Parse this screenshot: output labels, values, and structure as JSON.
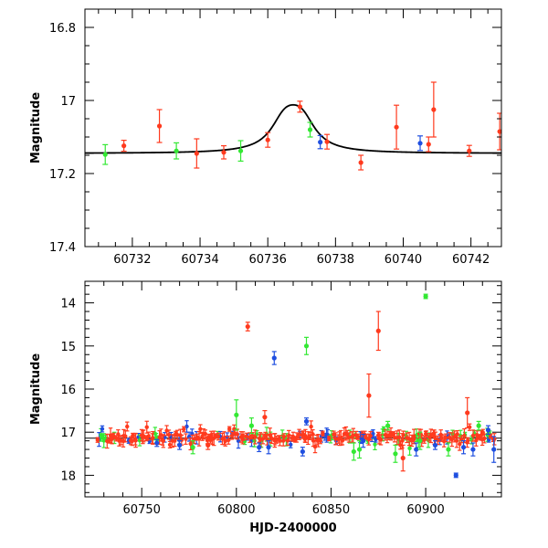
{
  "chart_data": [
    {
      "type": "scatter",
      "panel": "top",
      "xlabel": "",
      "ylabel": "Magnitude",
      "xlim": [
        60730.6,
        60742.9
      ],
      "ylim": [
        17.4,
        16.75
      ],
      "xticks": [
        60732,
        60734,
        60736,
        60738,
        60740,
        60742
      ],
      "xtick_labels": [
        "60732",
        "60734",
        "60736",
        "60738",
        "60740",
        "60742"
      ],
      "yticks": [
        16.8,
        17.0,
        17.2,
        17.4
      ],
      "ytick_labels": [
        "16.8",
        "17",
        "17.2",
        "17.4"
      ],
      "colors": {
        "red": "#ff3a1e",
        "green": "#33e833",
        "blue": "#1f4fe0",
        "curve": "#000000"
      },
      "model_curve": {
        "baseline": 17.145,
        "peak": 17.012,
        "t0": 60736.75,
        "width": 0.55
      },
      "points": [
        {
          "x": 60731.2,
          "y": 17.148,
          "err": 0.027,
          "color": "green"
        },
        {
          "x": 60731.75,
          "y": 17.124,
          "err": 0.015,
          "color": "red"
        },
        {
          "x": 60732.8,
          "y": 17.07,
          "err": 0.045,
          "color": "red"
        },
        {
          "x": 60733.3,
          "y": 17.138,
          "err": 0.022,
          "color": "green"
        },
        {
          "x": 60733.9,
          "y": 17.145,
          "err": 0.04,
          "color": "red"
        },
        {
          "x": 60734.7,
          "y": 17.142,
          "err": 0.018,
          "color": "red"
        },
        {
          "x": 60735.2,
          "y": 17.138,
          "err": 0.028,
          "color": "green"
        },
        {
          "x": 60736.0,
          "y": 17.108,
          "err": 0.02,
          "color": "red"
        },
        {
          "x": 60736.95,
          "y": 17.017,
          "err": 0.015,
          "color": "red"
        },
        {
          "x": 60737.25,
          "y": 17.08,
          "err": 0.02,
          "color": "green"
        },
        {
          "x": 60737.55,
          "y": 17.114,
          "err": 0.018,
          "color": "blue"
        },
        {
          "x": 60737.75,
          "y": 17.113,
          "err": 0.02,
          "color": "red"
        },
        {
          "x": 60738.75,
          "y": 17.17,
          "err": 0.02,
          "color": "red"
        },
        {
          "x": 60739.8,
          "y": 17.073,
          "err": 0.06,
          "color": "red"
        },
        {
          "x": 60740.5,
          "y": 17.117,
          "err": 0.02,
          "color": "blue"
        },
        {
          "x": 60740.75,
          "y": 17.12,
          "err": 0.02,
          "color": "red"
        },
        {
          "x": 60740.9,
          "y": 17.025,
          "err": 0.075,
          "color": "red"
        },
        {
          "x": 60741.95,
          "y": 17.138,
          "err": 0.015,
          "color": "red"
        },
        {
          "x": 60742.85,
          "y": 17.085,
          "err": 0.05,
          "color": "red"
        }
      ]
    },
    {
      "type": "scatter",
      "panel": "bottom",
      "xlabel": "HJD-2400000",
      "ylabel": "Magnitude",
      "xlim": [
        60720,
        60940
      ],
      "ylim": [
        18.5,
        13.5
      ],
      "xticks": [
        60750,
        60800,
        60850,
        60900
      ],
      "xtick_labels": [
        "60750",
        "60800",
        "60850",
        "60900"
      ],
      "yticks": [
        14,
        15,
        16,
        17,
        18
      ],
      "ytick_labels": [
        "14",
        "15",
        "16",
        "17",
        "18"
      ],
      "reference_line": 17.14,
      "colors": {
        "red": "#ff3a1e",
        "green": "#33e833",
        "blue": "#1f4fe0",
        "line": "#000000"
      },
      "band": {
        "x_start": 60727,
        "x_end": 60937,
        "center": 17.12,
        "spread": 0.09,
        "count": 260
      },
      "points": [
        {
          "x": 60729,
          "y": 17.1,
          "err": 0.06,
          "color": "green"
        },
        {
          "x": 60758,
          "y": 17.25,
          "err": 0.08,
          "color": "blue"
        },
        {
          "x": 60770,
          "y": 17.3,
          "err": 0.1,
          "color": "blue"
        },
        {
          "x": 60777,
          "y": 17.35,
          "err": 0.15,
          "color": "green"
        },
        {
          "x": 60785,
          "y": 17.3,
          "err": 0.1,
          "color": "red"
        },
        {
          "x": 60800,
          "y": 16.6,
          "err": 0.35,
          "color": "green"
        },
        {
          "x": 60806,
          "y": 14.55,
          "err": 0.1,
          "color": "red"
        },
        {
          "x": 60808,
          "y": 16.85,
          "err": 0.18,
          "color": "green"
        },
        {
          "x": 60812,
          "y": 17.35,
          "err": 0.1,
          "color": "blue"
        },
        {
          "x": 60815,
          "y": 16.65,
          "err": 0.15,
          "color": "red"
        },
        {
          "x": 60817,
          "y": 17.35,
          "err": 0.15,
          "color": "blue"
        },
        {
          "x": 60820,
          "y": 15.28,
          "err": 0.15,
          "color": "blue"
        },
        {
          "x": 60835,
          "y": 17.45,
          "err": 0.1,
          "color": "blue"
        },
        {
          "x": 60837,
          "y": 15.0,
          "err": 0.2,
          "color": "green"
        },
        {
          "x": 60837,
          "y": 16.75,
          "err": 0.08,
          "color": "blue"
        },
        {
          "x": 60862,
          "y": 17.45,
          "err": 0.2,
          "color": "green"
        },
        {
          "x": 60865,
          "y": 17.4,
          "err": 0.2,
          "color": "green"
        },
        {
          "x": 60867,
          "y": 17.2,
          "err": 0.15,
          "color": "blue"
        },
        {
          "x": 60870,
          "y": 16.15,
          "err": 0.5,
          "color": "red"
        },
        {
          "x": 60875,
          "y": 14.65,
          "err": 0.45,
          "color": "red"
        },
        {
          "x": 60880,
          "y": 16.85,
          "err": 0.1,
          "color": "green"
        },
        {
          "x": 60884,
          "y": 17.5,
          "err": 0.2,
          "color": "green"
        },
        {
          "x": 60888,
          "y": 17.6,
          "err": 0.3,
          "color": "red"
        },
        {
          "x": 60895,
          "y": 17.4,
          "err": 0.15,
          "color": "blue"
        },
        {
          "x": 60897,
          "y": 17.2,
          "err": 0.2,
          "color": "green"
        },
        {
          "x": 60900,
          "y": 13.85,
          "err": 0.05,
          "color": "green"
        },
        {
          "x": 60905,
          "y": 17.3,
          "err": 0.1,
          "color": "blue"
        },
        {
          "x": 60912,
          "y": 17.4,
          "err": 0.15,
          "color": "green"
        },
        {
          "x": 60916,
          "y": 18.0,
          "err": 0.05,
          "color": "blue"
        },
        {
          "x": 60920,
          "y": 17.35,
          "err": 0.15,
          "color": "blue"
        },
        {
          "x": 60922,
          "y": 16.55,
          "err": 0.35,
          "color": "red"
        },
        {
          "x": 60925,
          "y": 17.4,
          "err": 0.15,
          "color": "blue"
        },
        {
          "x": 60928,
          "y": 16.85,
          "err": 0.1,
          "color": "green"
        },
        {
          "x": 60933,
          "y": 16.95,
          "err": 0.1,
          "color": "blue"
        },
        {
          "x": 60936,
          "y": 17.4,
          "err": 0.3,
          "color": "blue"
        }
      ]
    }
  ]
}
